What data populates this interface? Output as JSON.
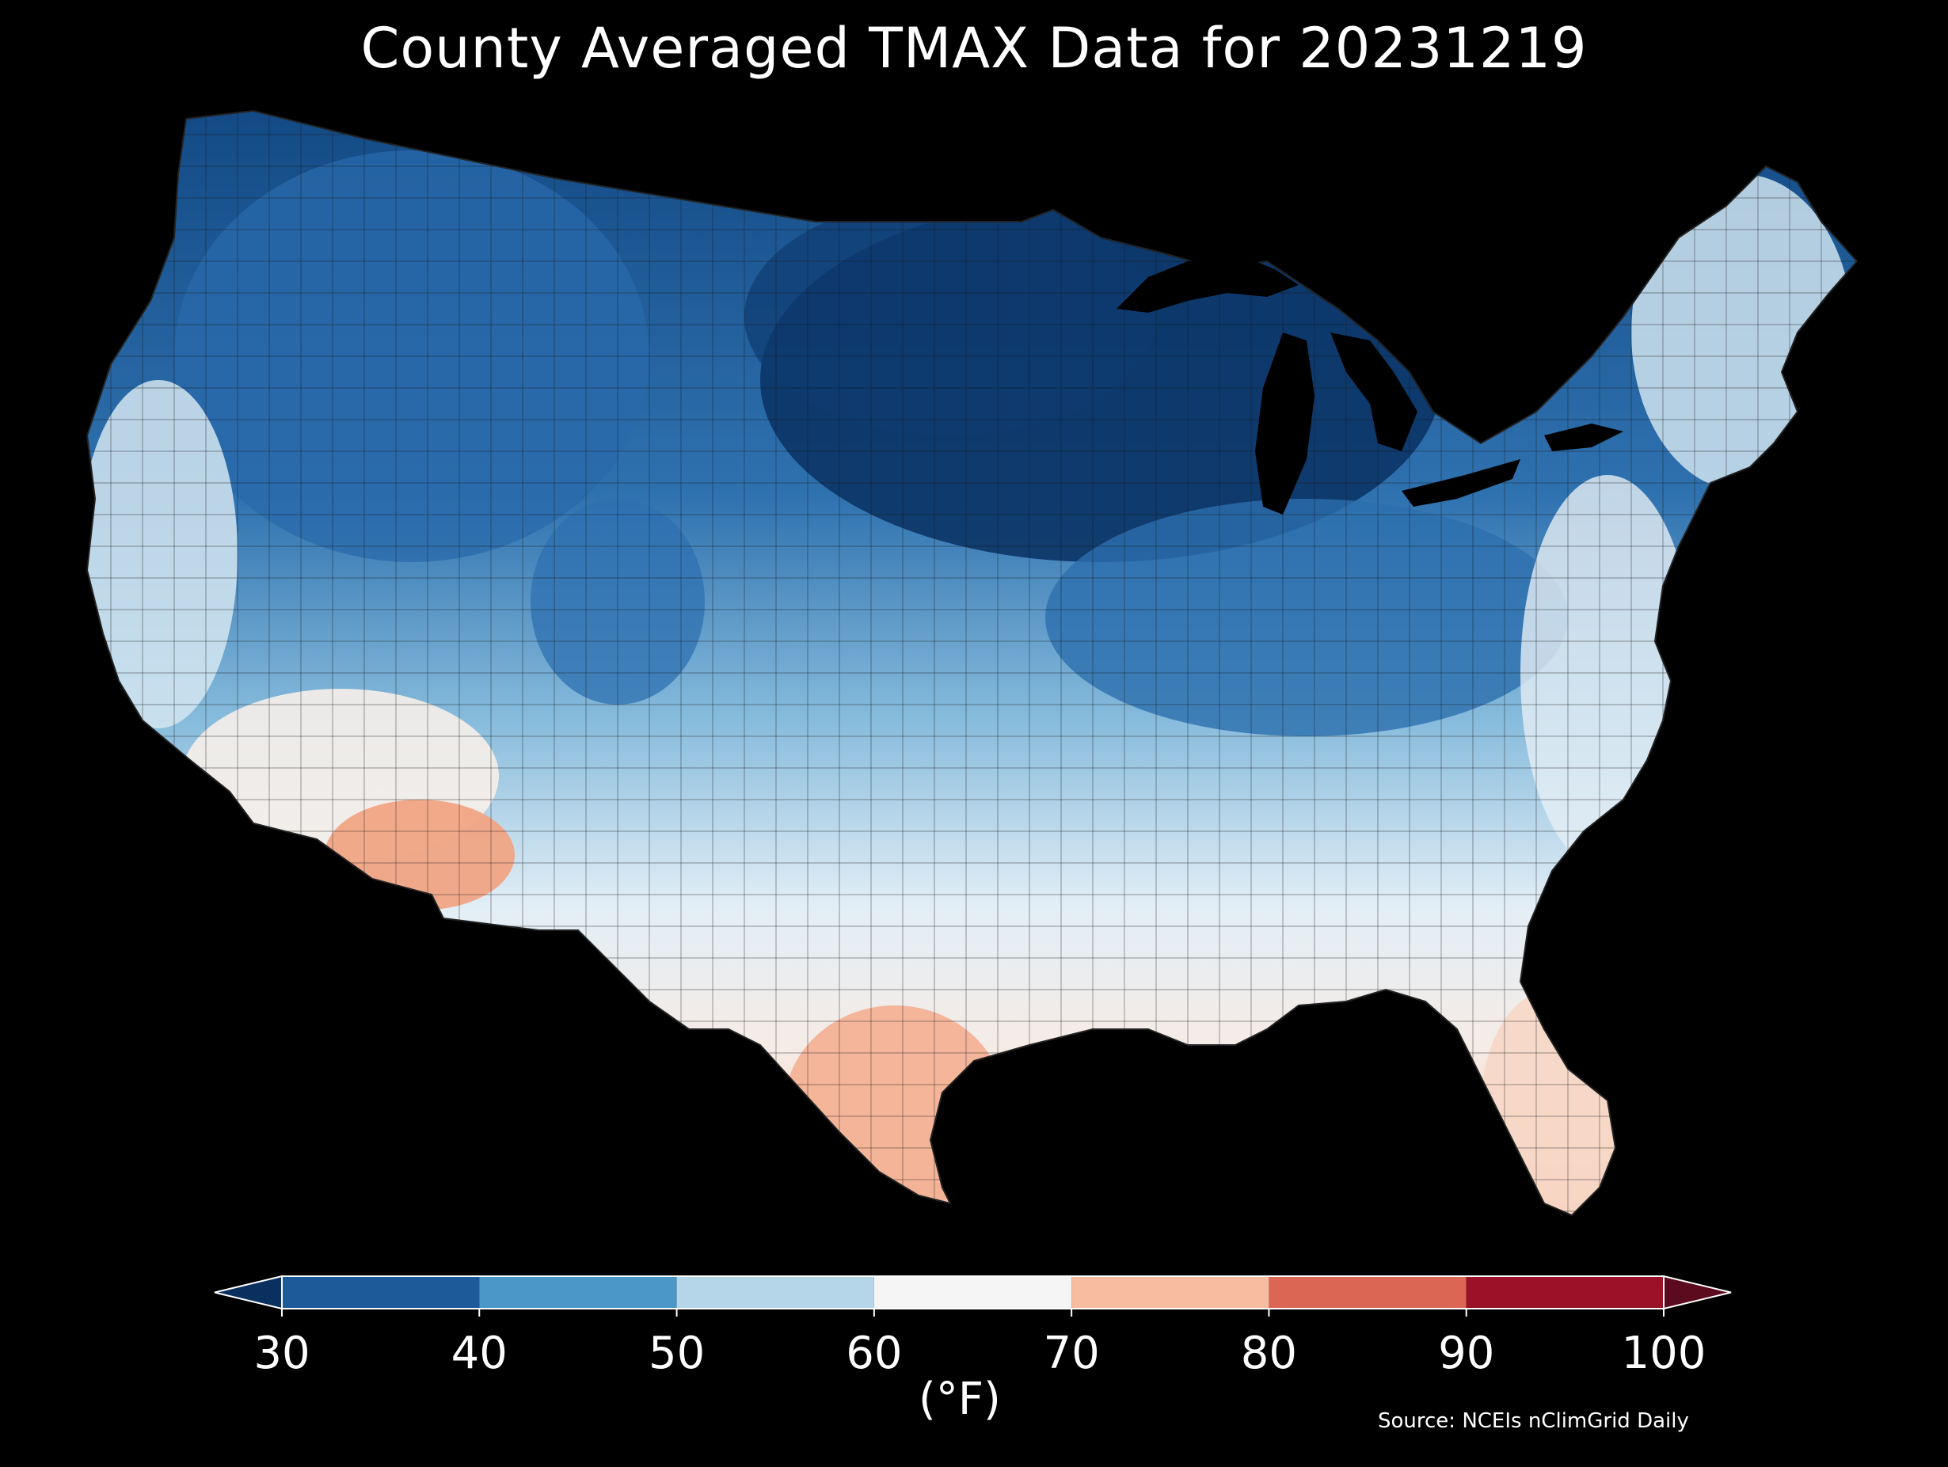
{
  "title": "County Averaged TMAX Data for 20231219",
  "colorbar": {
    "ticks": [
      "30",
      "40",
      "50",
      "60",
      "70",
      "80",
      "90",
      "100"
    ],
    "units": "(°F)",
    "bins": [
      {
        "from": 30,
        "to": 40,
        "color": "#1d5a9a"
      },
      {
        "from": 40,
        "to": 50,
        "color": "#4a97c8"
      },
      {
        "from": 50,
        "to": 60,
        "color": "#b5d6e9"
      },
      {
        "from": 60,
        "to": 70,
        "color": "#f5f5f5"
      },
      {
        "from": 70,
        "to": 80,
        "color": "#f7bda1"
      },
      {
        "from": 80,
        "to": 90,
        "color": "#db6653"
      },
      {
        "from": 90,
        "to": 100,
        "color": "#9a1128"
      }
    ],
    "under_color": "#0a3060",
    "over_color": "#5c0b1e",
    "range": [
      30,
      100
    ]
  },
  "source": "Source: NCEIs nClimGrid Daily",
  "background": "#000000"
}
